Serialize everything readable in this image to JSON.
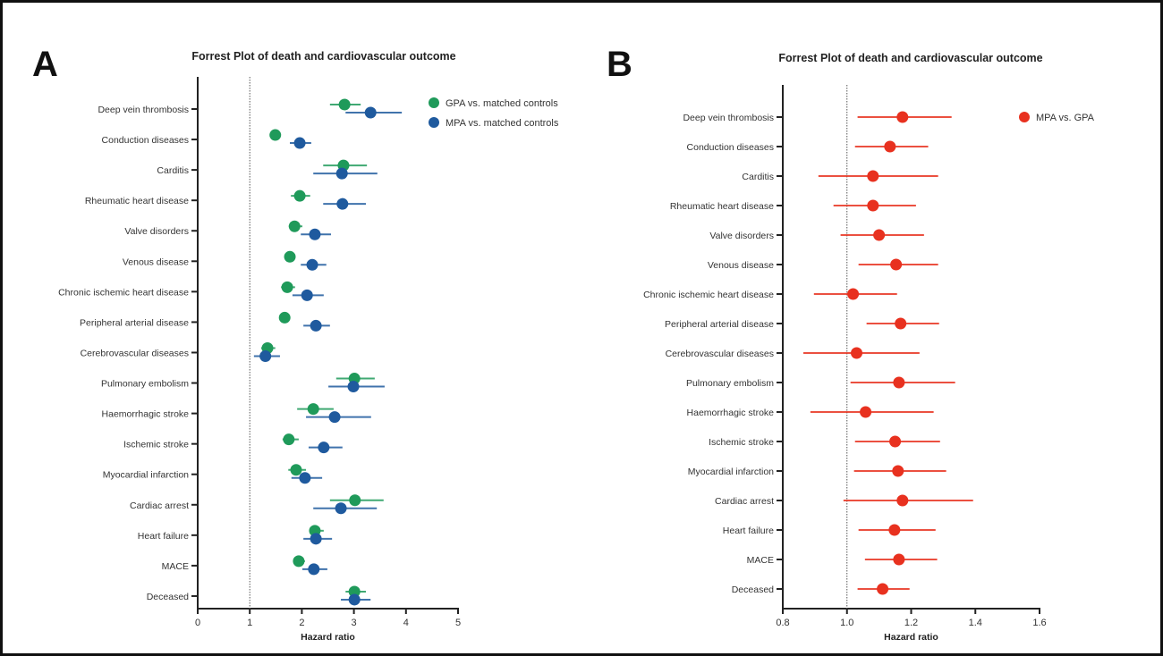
{
  "chart_data": [
    {
      "panel": "A",
      "type": "scatter",
      "subtype": "forest-plot",
      "title": "Forrest Plot of death and cardiovascular outcome",
      "xlabel": "Hazard ratio",
      "ylabel": "",
      "xlim": [
        0,
        5
      ],
      "xticks": [
        0,
        1,
        2,
        3,
        4,
        5
      ],
      "xtick_labels": [
        "0",
        "1",
        "2",
        "3",
        "4",
        "5"
      ],
      "reference_line": 1,
      "legend_position": "top-right",
      "categories": [
        "Deep vein thrombosis",
        "Conduction diseases",
        "Carditis",
        "Rheumatic heart disease",
        "Valve disorders",
        "Venous disease",
        "Chronic ischemic heart disease",
        "Peripheral arterial disease",
        "Cerebrovascular diseases",
        "Pulmonary embolism",
        "Haemorrhagic stroke",
        "Ischemic stroke",
        "Myocardial infarction",
        "Cardiac arrest",
        "Heart failure",
        "MACE",
        "Deceased"
      ],
      "series": [
        {
          "name": "GPA vs. matched controls",
          "color": "#1f9a5a",
          "hr": [
            2.82,
            1.49,
            2.8,
            1.96,
            1.86,
            1.77,
            1.72,
            1.67,
            1.34,
            3.01,
            2.22,
            1.75,
            1.89,
            3.02,
            2.25,
            1.94,
            3.01
          ],
          "lower": [
            2.54,
            1.42,
            2.41,
            1.79,
            1.75,
            1.7,
            1.6,
            1.62,
            1.22,
            2.66,
            1.91,
            1.63,
            1.74,
            2.54,
            2.15,
            1.86,
            2.84
          ],
          "upper": [
            3.13,
            1.56,
            3.25,
            2.16,
            2.01,
            1.84,
            1.87,
            1.72,
            1.49,
            3.4,
            2.61,
            1.94,
            2.08,
            3.57,
            2.42,
            2.06,
            3.23
          ]
        },
        {
          "name": "MPA vs. matched controls",
          "color": "#1f5a9e",
          "hr": [
            3.32,
            1.96,
            2.77,
            2.78,
            2.25,
            2.2,
            2.1,
            2.27,
            1.3,
            2.99,
            2.63,
            2.42,
            2.06,
            2.75,
            2.27,
            2.23,
            3.01
          ],
          "lower": [
            2.84,
            1.77,
            2.22,
            2.41,
            1.98,
            1.98,
            1.82,
            2.03,
            1.08,
            2.51,
            2.08,
            2.13,
            1.8,
            2.22,
            2.03,
            2.01,
            2.75
          ],
          "upper": [
            3.92,
            2.18,
            3.45,
            3.23,
            2.56,
            2.47,
            2.42,
            2.54,
            1.58,
            3.59,
            3.33,
            2.78,
            2.39,
            3.44,
            2.58,
            2.49,
            3.32
          ]
        }
      ]
    },
    {
      "panel": "B",
      "type": "scatter",
      "subtype": "forest-plot",
      "title": "Forrest Plot of death and cardiovascular outcome",
      "xlabel": "Hazard ratio",
      "ylabel": "",
      "xlim": [
        0.8,
        1.6
      ],
      "xticks": [
        0.8,
        1.0,
        1.2,
        1.4,
        1.6
      ],
      "xtick_labels": [
        "0.8",
        "1.0",
        "1.2",
        "1.4",
        "1.6"
      ],
      "reference_line": 1.0,
      "legend_position": "top-right",
      "categories": [
        "Deep vein thrombosis",
        "Conduction diseases",
        "Carditis",
        "Rheumatic heart disease",
        "Valve disorders",
        "Venous disease",
        "Chronic ischemic heart disease",
        "Peripheral arterial disease",
        "Cerebrovascular diseases",
        "Pulmonary embolism",
        "Haemorrhagic stroke",
        "Ischemic stroke",
        "Myocardial infarction",
        "Cardiac arrest",
        "Heart failure",
        "MACE",
        "Deceased"
      ],
      "series": [
        {
          "name": "MPA vs. GPA",
          "color": "#e8311f",
          "hr": [
            1.173,
            1.134,
            1.081,
            1.081,
            1.1,
            1.153,
            1.019,
            1.167,
            1.03,
            1.162,
            1.058,
            1.15,
            1.159,
            1.173,
            1.148,
            1.162,
            1.111
          ],
          "lower": [
            1.033,
            1.025,
            0.911,
            0.958,
            0.98,
            1.036,
            0.897,
            1.061,
            0.864,
            1.011,
            0.886,
            1.025,
            1.022,
            0.989,
            1.036,
            1.056,
            1.033
          ],
          "upper": [
            1.326,
            1.253,
            1.284,
            1.215,
            1.24,
            1.284,
            1.156,
            1.287,
            1.226,
            1.337,
            1.27,
            1.29,
            1.309,
            1.393,
            1.276,
            1.281,
            1.195
          ]
        }
      ]
    }
  ]
}
